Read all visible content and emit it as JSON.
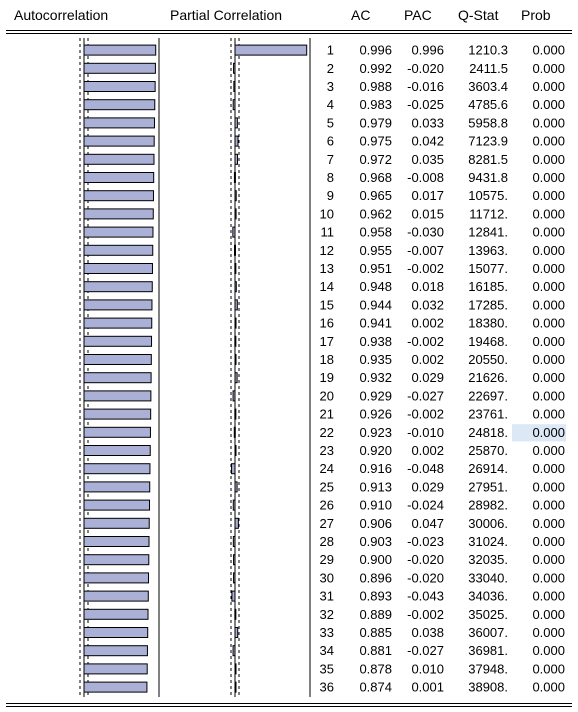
{
  "header": {
    "autocorrelation": "Autocorrelation",
    "partial_correlation": "Partial Correlation",
    "ac": "AC",
    "pac": "PAC",
    "qstat": "Q-Stat",
    "prob": "Prob"
  },
  "colors": {
    "bar_fill": "#aab0d6",
    "bar_stroke": "#000000",
    "highlight": "#dde8f6"
  },
  "highlighted_cell": {
    "row": 22,
    "column": "prob"
  },
  "chart_data": {
    "type": "table",
    "lags": [
      1,
      2,
      3,
      4,
      5,
      6,
      7,
      8,
      9,
      10,
      11,
      12,
      13,
      14,
      15,
      16,
      17,
      18,
      19,
      20,
      21,
      22,
      23,
      24,
      25,
      26,
      27,
      28,
      29,
      30,
      31,
      32,
      33,
      34,
      35,
      36
    ],
    "ac": [
      "0.996",
      "0.992",
      "0.988",
      "0.983",
      "0.979",
      "0.975",
      "0.972",
      "0.968",
      "0.965",
      "0.962",
      "0.958",
      "0.955",
      "0.951",
      "0.948",
      "0.944",
      "0.941",
      "0.938",
      "0.935",
      "0.932",
      "0.929",
      "0.926",
      "0.923",
      "0.920",
      "0.916",
      "0.913",
      "0.910",
      "0.906",
      "0.903",
      "0.900",
      "0.896",
      "0.893",
      "0.889",
      "0.885",
      "0.881",
      "0.878",
      "0.874"
    ],
    "pac": [
      "0.996",
      "-0.020",
      "-0.016",
      "-0.025",
      "0.033",
      "0.042",
      "0.035",
      "-0.008",
      "0.017",
      "0.015",
      "-0.030",
      "-0.007",
      "-0.002",
      "0.018",
      "0.032",
      "0.002",
      "-0.002",
      "0.002",
      "0.029",
      "-0.027",
      "-0.002",
      "-0.010",
      "0.002",
      "-0.048",
      "0.029",
      "-0.024",
      "0.047",
      "-0.023",
      "-0.020",
      "-0.020",
      "-0.043",
      "-0.002",
      "0.038",
      "-0.027",
      "0.010",
      "0.001"
    ],
    "qstat": [
      "1210.3",
      "2411.5",
      "3603.4",
      "4785.6",
      "5958.8",
      "7123.9",
      "8281.5",
      "9431.8",
      "10575.",
      "11712.",
      "12841.",
      "13963.",
      "15077.",
      "16185.",
      "17285.",
      "18380.",
      "19468.",
      "20550.",
      "21626.",
      "22697.",
      "23761.",
      "24818.",
      "25870.",
      "26914.",
      "27951.",
      "28982.",
      "30006.",
      "31024.",
      "32035.",
      "33040.",
      "34036.",
      "35025.",
      "36007.",
      "36981.",
      "37948.",
      "38908."
    ],
    "prob": [
      "0.000",
      "0.000",
      "0.000",
      "0.000",
      "0.000",
      "0.000",
      "0.000",
      "0.000",
      "0.000",
      "0.000",
      "0.000",
      "0.000",
      "0.000",
      "0.000",
      "0.000",
      "0.000",
      "0.000",
      "0.000",
      "0.000",
      "0.000",
      "0.000",
      "0.000",
      "0.000",
      "0.000",
      "0.000",
      "0.000",
      "0.000",
      "0.000",
      "0.000",
      "0.000",
      "0.000",
      "0.000",
      "0.000",
      "0.000",
      "0.000",
      "0.000"
    ]
  }
}
